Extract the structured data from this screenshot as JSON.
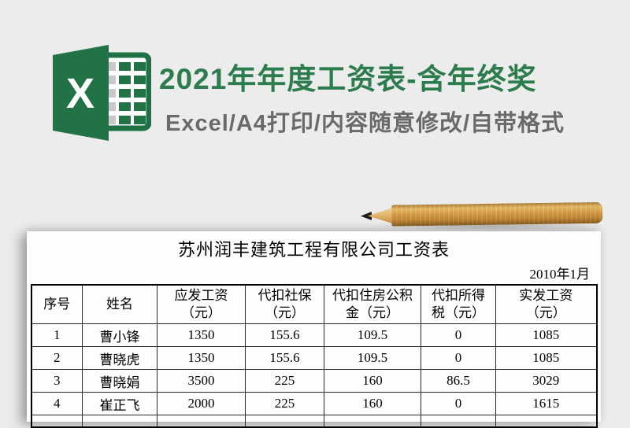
{
  "page": {
    "background_color": "#ececec",
    "accent_green": "#2c7c4e",
    "excel_brand_green": "#217346",
    "subtitle_gray": "#6a6a6a"
  },
  "hero": {
    "title": "2021年年度工资表-含年终奖",
    "subtitle": "Excel/A4打印/内容随意修改/自带格式",
    "excel_icon_letter": "X"
  },
  "worksheet": {
    "company_title": "苏州润丰建筑工程有限公司工资表",
    "period": "2010年1月",
    "table": {
      "headers": [
        "序号",
        "姓名",
        "应发工资\n（元）",
        "代扣社保\n（元）",
        "代扣住房公积\n金（元）",
        "代扣所得\n税（元）",
        "实发工资\n（元）"
      ],
      "rows": [
        [
          "1",
          "曹小锋",
          "1350",
          "155.6",
          "109.5",
          "0",
          "1085"
        ],
        [
          "2",
          "曹晓虎",
          "1350",
          "155.6",
          "109.5",
          "0",
          "1085"
        ],
        [
          "3",
          "曹晓娟",
          "3500",
          "225",
          "160",
          "86.5",
          "3029"
        ],
        [
          "4",
          "崔正飞",
          "2000",
          "225",
          "160",
          "0",
          "1615"
        ]
      ]
    }
  }
}
